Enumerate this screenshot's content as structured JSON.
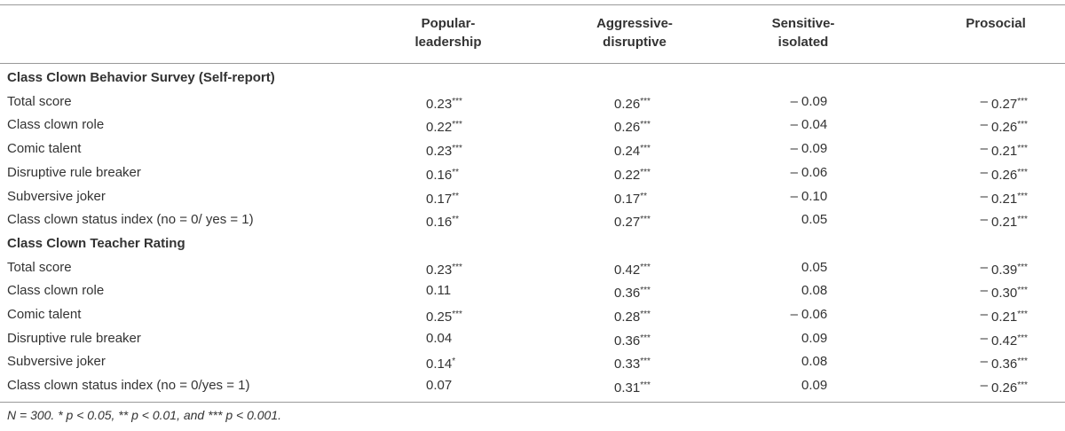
{
  "table": {
    "columns": [
      "Popular-\nleadership",
      "Aggressive-\ndisruptive",
      "Sensitive-\nisolated",
      "Prosocial"
    ],
    "sections": [
      {
        "title": "Class Clown Behavior Survey (Self-report)",
        "rows": [
          [
            "Total score",
            "0.23***",
            "0.26***",
            "– 0.09",
            "– 0.27***"
          ],
          [
            "Class clown role",
            "0.22***",
            "0.26***",
            "– 0.04",
            "– 0.26***"
          ],
          [
            "Comic talent",
            "0.23***",
            "0.24***",
            "– 0.09",
            "– 0.21***"
          ],
          [
            "Disruptive rule breaker",
            "0.16**",
            "0.22***",
            "– 0.06",
            "– 0.26***"
          ],
          [
            "Subversive joker",
            "0.17**",
            "0.17**",
            "– 0.10",
            "– 0.21***"
          ],
          [
            "Class clown status index (no = 0/ yes = 1)",
            "0.16**",
            "0.27***",
            "0.05",
            "– 0.21***"
          ]
        ]
      },
      {
        "title": "Class Clown Teacher Rating",
        "rows": [
          [
            "Total score",
            "0.23***",
            "0.42***",
            "0.05",
            "– 0.39***"
          ],
          [
            "Class clown role",
            "0.11",
            "0.36***",
            "0.08",
            "– 0.30***"
          ],
          [
            "Comic talent",
            "0.25***",
            "0.28***",
            "– 0.06",
            "– 0.21***"
          ],
          [
            "Disruptive rule breaker",
            "0.04",
            "0.36***",
            "0.09",
            "– 0.42***"
          ],
          [
            "Subversive joker",
            "0.14*",
            "0.33***",
            "0.08",
            "– 0.36***"
          ],
          [
            "Class clown status index (no = 0/yes = 1)",
            "0.07",
            "0.31***",
            "0.09",
            "– 0.26***"
          ]
        ]
      }
    ],
    "footnote": "N = 300. * p < 0.05, ** p < 0.01, and *** p < 0.001."
  }
}
